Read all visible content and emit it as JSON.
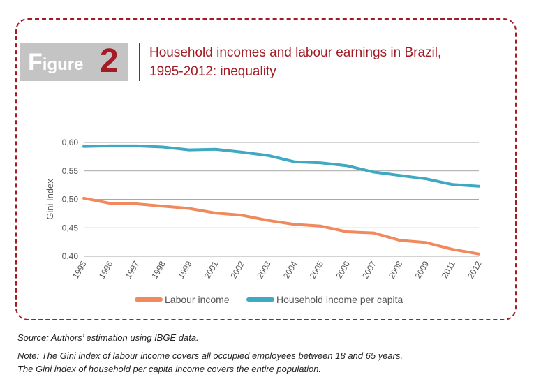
{
  "figure": {
    "label": "Figure",
    "number": "2",
    "title_line1": "Household incomes and labour earnings in Brazil,",
    "title_line2": "1995-2012: inequality"
  },
  "chart_data": {
    "type": "line",
    "title": "Household incomes and labour earnings in Brazil, 1995-2012: inequality",
    "ylabel": "Gini Index",
    "xlabel": "",
    "ylim": [
      0.4,
      0.6
    ],
    "yticks": [
      "0,40",
      "0,45",
      "0,50",
      "0,55",
      "0,60"
    ],
    "categories": [
      "1995",
      "1996",
      "1997",
      "1998",
      "1999",
      "2001",
      "2002",
      "2003",
      "2004",
      "2005",
      "2006",
      "2007",
      "2008",
      "2009",
      "2011",
      "2012"
    ],
    "series": [
      {
        "name": "Labour income",
        "color": "#f08a5d",
        "values": [
          0.502,
          0.493,
          0.492,
          0.488,
          0.484,
          0.476,
          0.472,
          0.463,
          0.456,
          0.453,
          0.443,
          0.441,
          0.428,
          0.424,
          0.412,
          0.404
        ]
      },
      {
        "name": "Household income per capita",
        "color": "#3fa9c1",
        "values": [
          0.593,
          0.594,
          0.594,
          0.592,
          0.587,
          0.588,
          0.583,
          0.577,
          0.566,
          0.564,
          0.559,
          0.548,
          0.542,
          0.536,
          0.526,
          0.523
        ]
      }
    ],
    "grid": true,
    "legend_position": "bottom"
  },
  "source": "Source: Authors’ estimation using IBGE data.",
  "note_line1": "Note: The Gini index of labour income covers all occupied employees between 18 and 65 years.",
  "note_line2": "The Gini index of household per capita income covers the entire population."
}
